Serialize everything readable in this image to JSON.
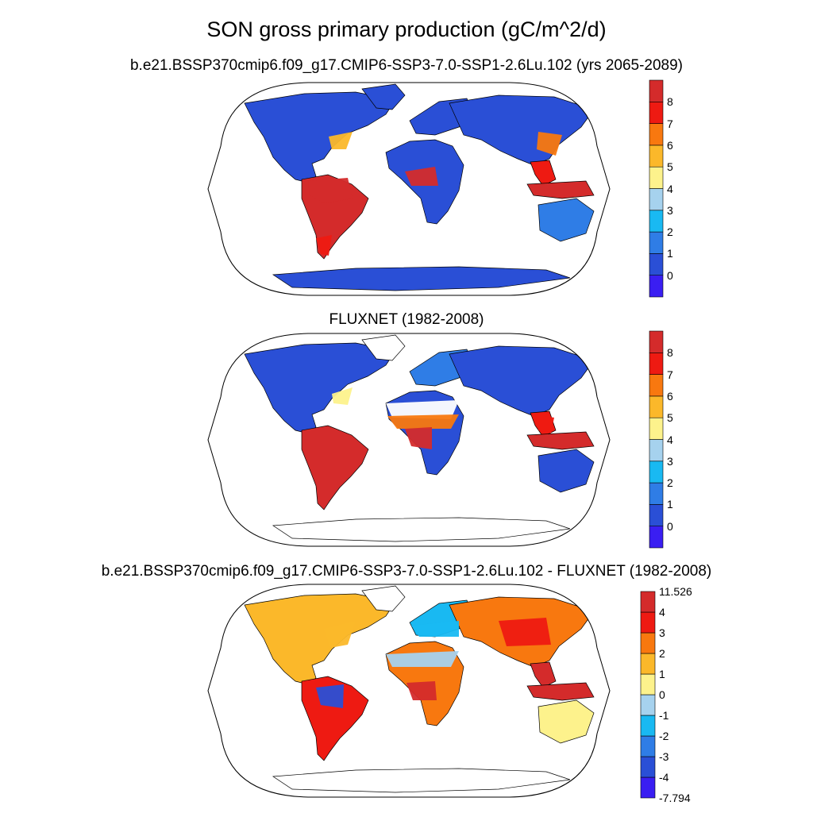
{
  "main_title": "SON gross primary production (gC/m^2/d)",
  "panels": [
    {
      "title": "b.e21.BSSP370cmip6.f09_g17.CMIP6-SSP3-7.0-SSP1-2.6Lu.102 (yrs 2065-2089)",
      "colorbar": {
        "colors": [
          "#3a1ef2",
          "#2a4fd6",
          "#2f7de6",
          "#19b9f2",
          "#a6d2ee",
          "#fdf28c",
          "#fbb82a",
          "#f8780f",
          "#ee1a12",
          "#d42b2b"
        ],
        "labels": [
          "0",
          "1",
          "2",
          "3",
          "4",
          "5",
          "6",
          "7",
          "8"
        ]
      }
    },
    {
      "title": "FLUXNET (1982-2008)",
      "colorbar": {
        "colors": [
          "#3a1ef2",
          "#2a4fd6",
          "#2f7de6",
          "#19b9f2",
          "#a6d2ee",
          "#fdf28c",
          "#fbb82a",
          "#f8780f",
          "#ee1a12",
          "#d42b2b"
        ],
        "labels": [
          "0",
          "1",
          "2",
          "3",
          "4",
          "5",
          "6",
          "7",
          "8"
        ]
      }
    },
    {
      "title": "b.e21.BSSP370cmip6.f09_g17.CMIP6-SSP3-7.0-SSP1-2.6Lu.102 - FLUXNET (1982-2008)",
      "colorbar": {
        "colors": [
          "#3a1ef2",
          "#2a4fd6",
          "#2f7de6",
          "#19b9f2",
          "#a6d2ee",
          "#fdf28c",
          "#fbb82a",
          "#f8780f",
          "#ee1a12",
          "#d42b2b"
        ],
        "labels": [
          "11.526",
          "4",
          "3",
          "2",
          "1",
          "0",
          "-1",
          "-2",
          "-3",
          "-4",
          "-7.794"
        ]
      }
    }
  ]
}
